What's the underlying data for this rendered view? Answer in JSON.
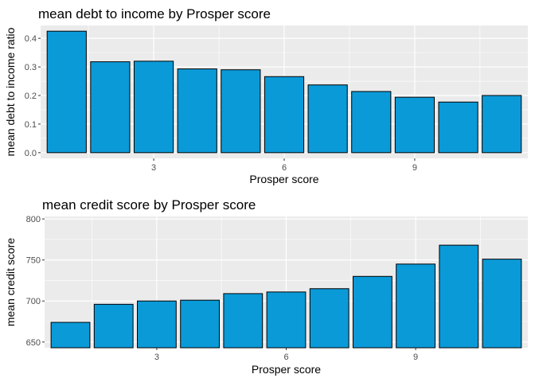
{
  "chart_data": [
    {
      "type": "bar",
      "title": "mean debt to income by Prosper score",
      "xlabel": "Prosper score",
      "ylabel": "mean debt to income ratio",
      "x": [
        1,
        2,
        3,
        4,
        5,
        6,
        7,
        8,
        9,
        10,
        11
      ],
      "values": [
        0.425,
        0.318,
        0.32,
        0.293,
        0.29,
        0.266,
        0.237,
        0.214,
        0.194,
        0.177,
        0.2
      ],
      "xlim": [
        0.4,
        11.6
      ],
      "ylim": [
        -0.02,
        0.445
      ],
      "xticks": [
        3,
        6,
        9
      ],
      "yticks": [
        0.0,
        0.1,
        0.2,
        0.3,
        0.4
      ],
      "ytick_labels": [
        "0.0",
        "0.1",
        "0.2",
        "0.3",
        "0.4"
      ],
      "bar_color": "#0B9AD8",
      "panel_color": "#EBEBEB",
      "grid": true
    },
    {
      "type": "bar",
      "title": "mean credit score by Prosper score",
      "xlabel": "Prosper score",
      "ylabel": "mean credit score",
      "x": [
        1,
        2,
        3,
        4,
        5,
        6,
        7,
        8,
        9,
        10,
        11
      ],
      "values": [
        674,
        696,
        700,
        701,
        709,
        711,
        715,
        730,
        745,
        768,
        751
      ],
      "xlim": [
        0.4,
        11.6
      ],
      "ylim": [
        643,
        803
      ],
      "baseline": 643,
      "xticks": [
        3,
        6,
        9
      ],
      "yticks": [
        650,
        700,
        750,
        800
      ],
      "ytick_labels": [
        "650",
        "700",
        "750",
        "800"
      ],
      "bar_color": "#0B9AD8",
      "panel_color": "#EBEBEB",
      "grid": true
    }
  ]
}
